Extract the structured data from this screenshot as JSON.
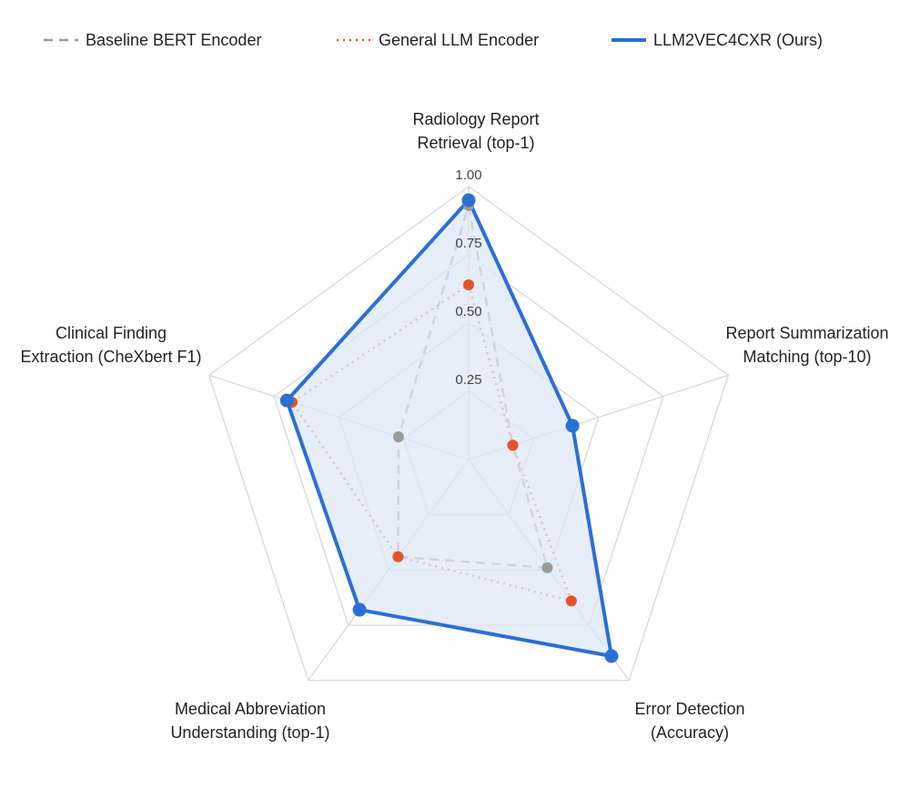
{
  "chart_data": {
    "type": "radar",
    "categories": [
      [
        "Radiology Report",
        "Retrieval (top-1)"
      ],
      [
        "Report Summarization",
        "Matching (top-10)"
      ],
      [
        "Error Detection",
        "(Accuracy)"
      ],
      [
        "Medical Abbreviation",
        "Understanding (top-1)"
      ],
      [
        "Clinical Finding",
        "Extraction (CheXbert F1)"
      ]
    ],
    "ylim": [
      0,
      1
    ],
    "yticks": [
      0.25,
      {
        "value": 0.5,
        "label": "0.50"
      },
      0.75,
      {
        "value": 1,
        "label": "1.00"
      }
    ],
    "grid": true,
    "legend": "top",
    "series": [
      {
        "name": "Baseline BERT Encoder",
        "color": "#9a9a9a",
        "linestyle": "dashed",
        "values": [
          0.93,
          0.17,
          0.49,
          0.44,
          0.27
        ]
      },
      {
        "name": "General LLM Encoder",
        "color": "#e2542a",
        "linestyle": "dotted",
        "values": [
          0.64,
          0.17,
          0.64,
          0.44,
          0.68
        ]
      },
      {
        "name": "LLM2VEC4CXR (Ours)",
        "color": "#2a6fd6",
        "linestyle": "solid",
        "fill": "#dde8f7",
        "values": [
          0.95,
          0.4,
          0.89,
          0.68,
          0.7
        ]
      }
    ]
  }
}
